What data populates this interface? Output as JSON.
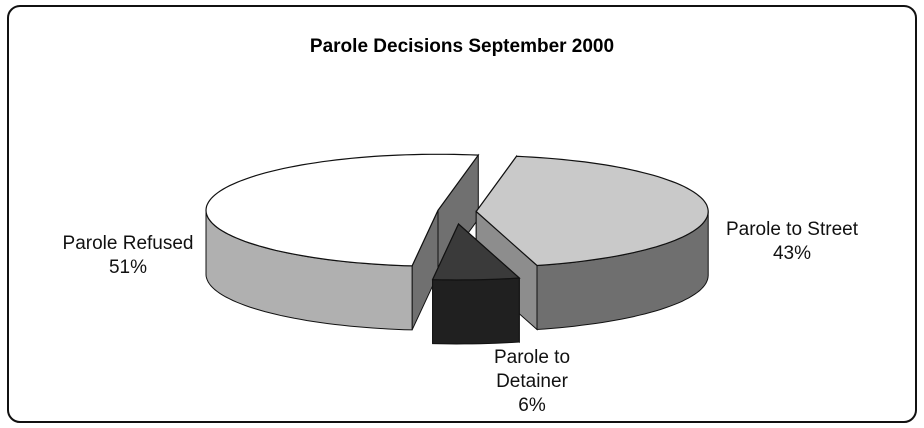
{
  "chart_data": {
    "type": "pie",
    "title": "Parole Decisions September 2000",
    "categories": [
      "Parole to Street",
      "Parole to Detainer",
      "Parole Refused"
    ],
    "values": [
      43,
      6,
      51
    ],
    "value_labels": [
      "43%",
      "6%",
      "51%"
    ],
    "colors": [
      "#c9c9c9",
      "#3a3a3a",
      "#ffffff"
    ]
  }
}
